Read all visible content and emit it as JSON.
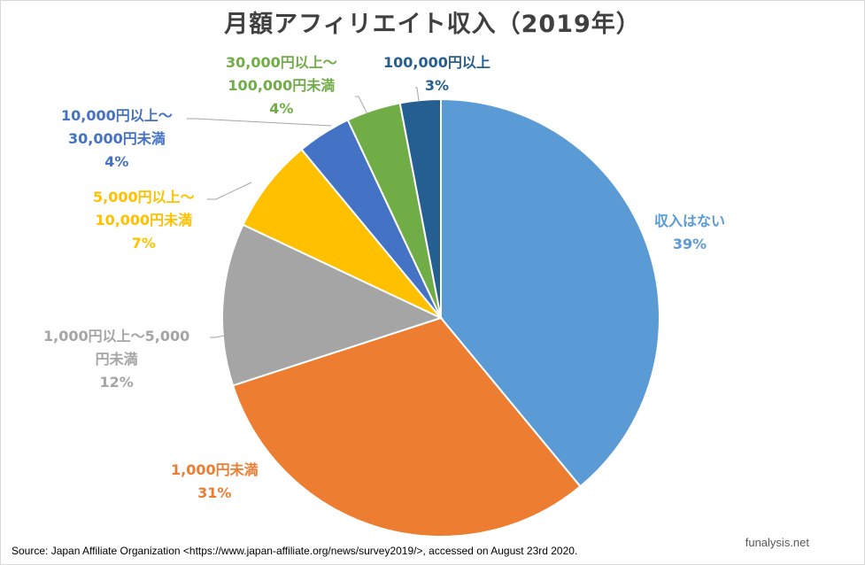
{
  "chart_data": {
    "type": "pie",
    "title": "月額アフィリエイト収入（2019年）",
    "slices": [
      {
        "label": "収入はない",
        "value": 39,
        "pct_label": "39%",
        "color": "#5b9bd5"
      },
      {
        "label": "1,000円未満",
        "value": 31,
        "pct_label": "31%",
        "color": "#ed7d31"
      },
      {
        "label": "1,000円以上～5,000円未満",
        "value": 12,
        "pct_label": "12%",
        "color": "#a5a5a5"
      },
      {
        "label": "5,000円以上～10,000円未満",
        "value": 7,
        "pct_label": "7%",
        "color": "#ffc000"
      },
      {
        "label": "10,000円以上～30,000円未満",
        "value": 4,
        "pct_label": "4%",
        "color": "#4472c4"
      },
      {
        "label": "30,000円以上～100,000円未満",
        "value": 4,
        "pct_label": "4%",
        "color": "#70ad47"
      },
      {
        "label": "100,000円以上",
        "value": 3,
        "pct_label": "3%",
        "color": "#255e91"
      }
    ]
  },
  "labels": {
    "s0": {
      "line1": "収入はない",
      "pct": "39%"
    },
    "s1": {
      "line1": "1,000円未満",
      "pct": "31%"
    },
    "s2": {
      "line1": "1,000円以上～5,000",
      "line2": "円未満",
      "pct": "12%"
    },
    "s3": {
      "line1": "5,000円以上～",
      "line2": "10,000円未満",
      "pct": "7%"
    },
    "s4": {
      "line1": "10,000円以上～",
      "line2": "30,000円未満",
      "pct": "4%"
    },
    "s5": {
      "line1": "30,000円以上～",
      "line2": "100,000円未満",
      "pct": "4%"
    },
    "s6": {
      "line1": "100,000円以上",
      "pct": "3%"
    }
  },
  "source": "Source:  Japan Affiliate Organization <https://www.japan-affiliate.org/news/survey2019/>, accessed on August 23rd 2020.",
  "credit": "funalysis.net"
}
